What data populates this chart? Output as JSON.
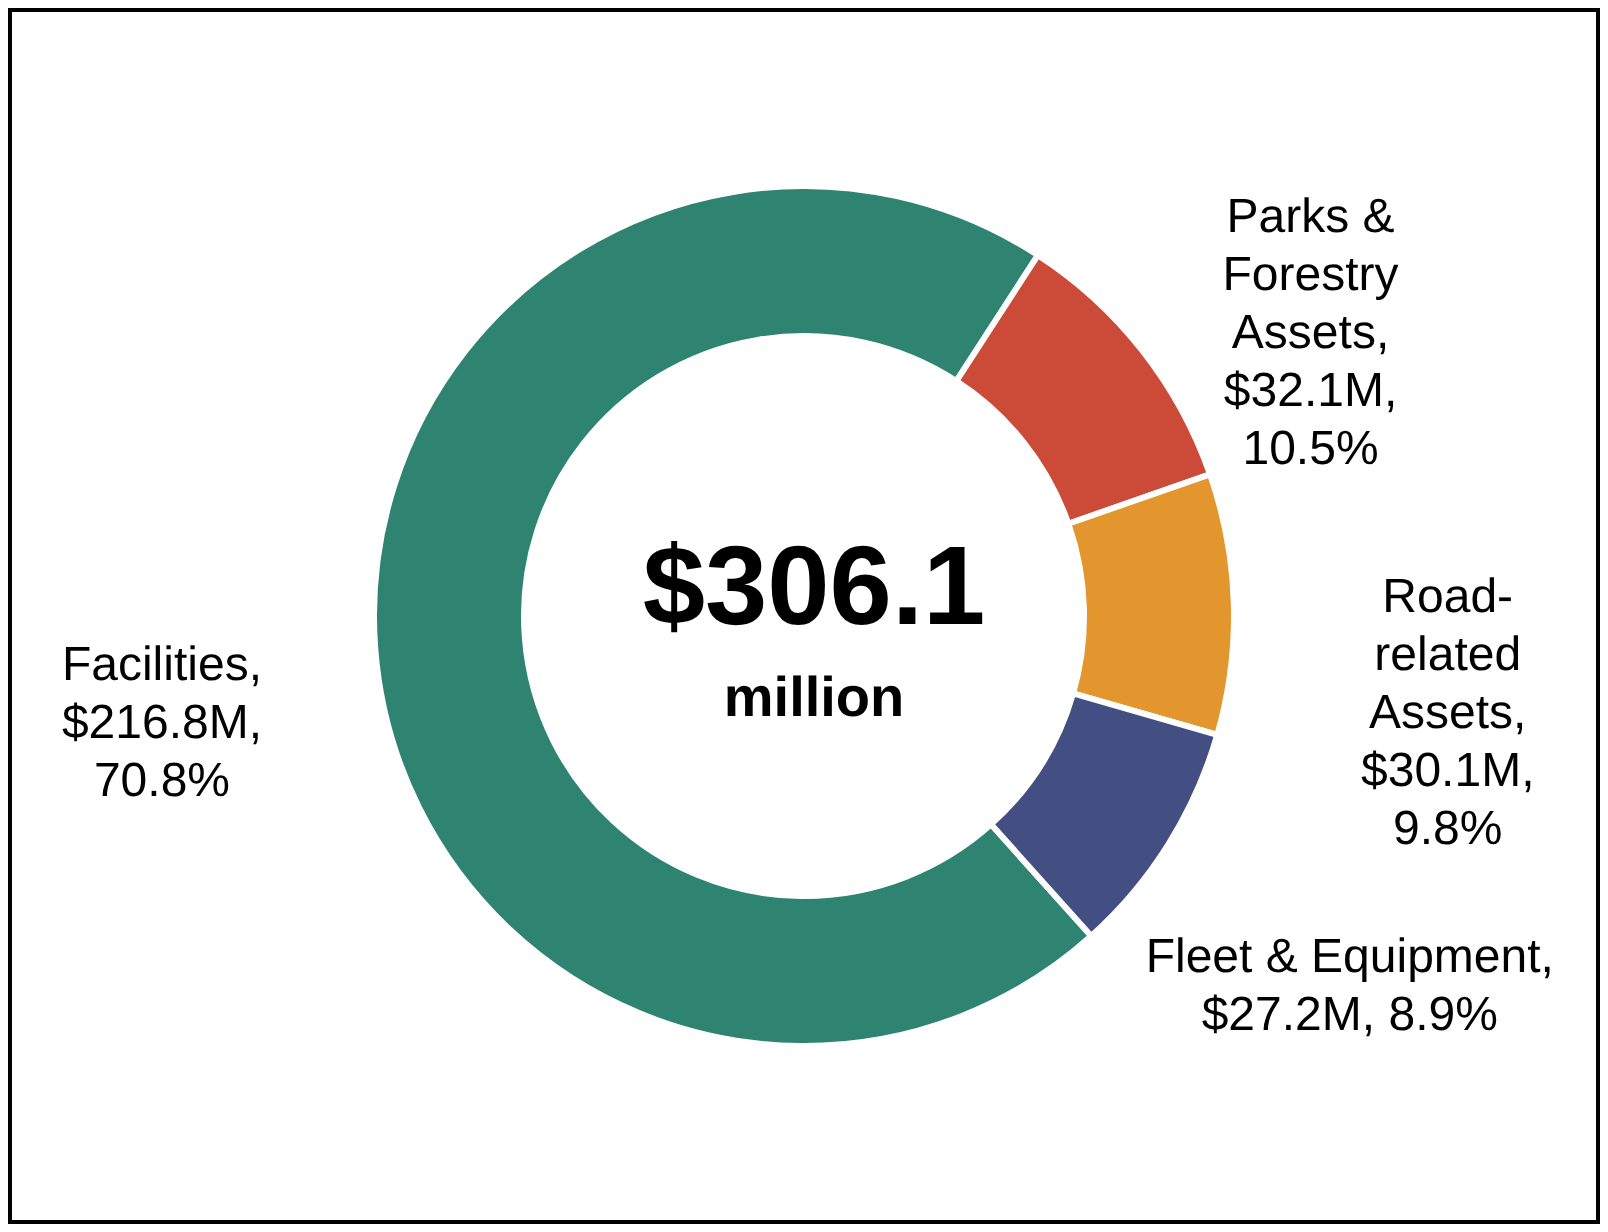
{
  "chart_data": {
    "type": "donut",
    "categories": [
      "Facilities",
      "Parks &\nForestry\nAssets",
      "Road-\nrelated\nAssets",
      "Fleet & Equipment"
    ],
    "values": [
      70.8,
      10.5,
      9.8,
      8.9
    ],
    "value_labels": [
      ",\n$216.8M,\n70.8%",
      ",\n$32.1M,\n10.5%",
      ",\n$30.1M,\n9.8%",
      ",\n$27.2M, 8.9%"
    ],
    "colors": [
      "#2e8470",
      "#cc4a38",
      "#e4962e",
      "#434f82"
    ],
    "annotations": [
      "$306.1",
      "million"
    ],
    "legend": false
  }
}
